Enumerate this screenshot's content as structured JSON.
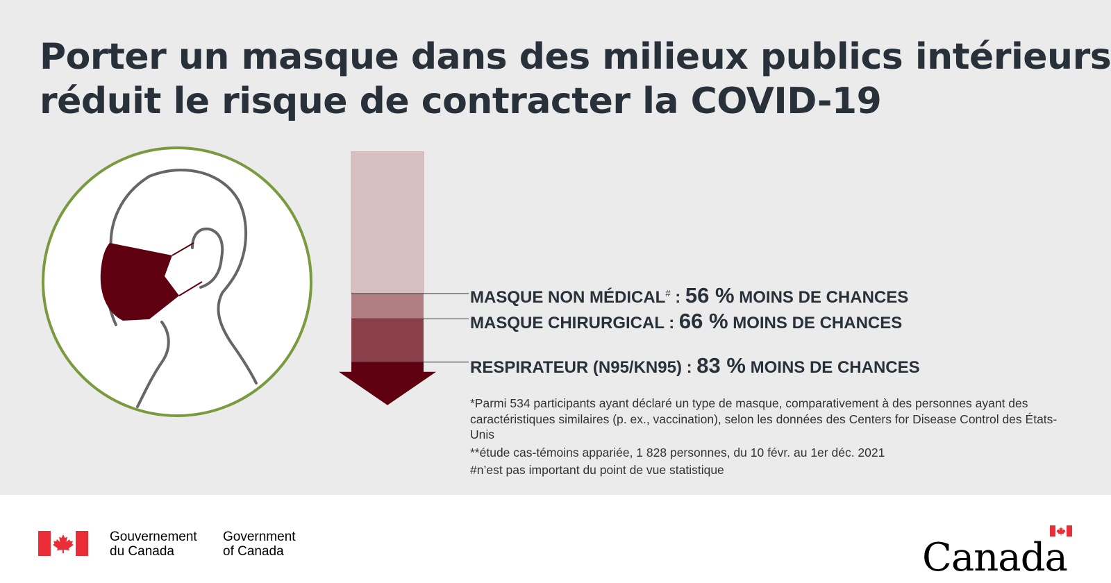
{
  "title": {
    "line1": "Porter un masque dans des milieux publics intérieurs",
    "line2": "réduit le risque de contracter la COVID-19"
  },
  "chart_data": {
    "type": "bar",
    "title": "Porter un masque dans des milieux publics intérieurs réduit le risque de contracter la COVID-19",
    "categories": [
      "MASQUE NON MÉDICAL",
      "MASQUE CHIRURGICAL",
      "RESPIRATEUR (N95/KN95)"
    ],
    "values": [
      56,
      66,
      83
    ],
    "unit": "%",
    "ylabel": "moins de chances",
    "ylim": [
      0,
      100
    ],
    "direction": "down",
    "colors": [
      "#b07d80",
      "#8b3f48",
      "#5e0010"
    ],
    "background_color": "#d7bfc2"
  },
  "labels": [
    {
      "name": "MASQUE NON MÉDICAL",
      "mark": "#",
      "sep": " : ",
      "pct": "56 %",
      "suffix": " MOINS DE CHANCES"
    },
    {
      "name": "MASQUE CHIRURGICAL",
      "mark": "",
      "sep": " : ",
      "pct": "66 %",
      "suffix": " MOINS DE CHANCES"
    },
    {
      "name": "RESPIRATEUR (N95/KN95)",
      "mark": "",
      "sep": " : ",
      "pct": "83 %",
      "suffix": " MOINS DE CHANCES"
    }
  ],
  "notes": [
    "*Parmi 534 participants ayant déclaré un type de masque, comparativement à des personnes ayant des caractéristiques similaires (p. ex., vaccination), selon les données des Centers for Disease Control des États-Unis",
    "**étude cas-témoins appariée, 1 828 personnes, du 10 févr. au 1er déc. 2021",
    "#n’est pas important du point de vue statistique"
  ],
  "footer": {
    "fr_line1": "Gouvernement",
    "fr_line2": "du Canada",
    "en_line1": "Government",
    "en_line2": "of Canada",
    "wordmark": "Canada"
  },
  "colors": {
    "panel": "#ebebeb",
    "title": "#283039",
    "circle_border": "#7a9a3e",
    "mask": "#5e0010",
    "flag_red": "#eb2d37"
  },
  "icons": {
    "illustration": "face-with-mask-icon",
    "flag": "canada-flag-icon"
  }
}
